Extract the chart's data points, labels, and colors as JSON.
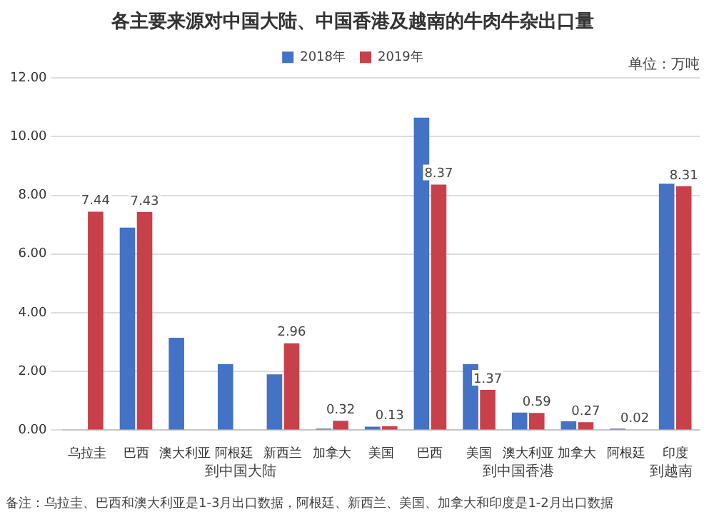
{
  "chart_data": {
    "type": "bar",
    "title": "各主要来源对中国大陆、中国香港及越南的牛肉牛杂出口量",
    "categories": [
      "乌拉圭",
      "巴西",
      "澳大利亚",
      "阿根廷",
      "新西兰",
      "加拿大",
      "美国",
      "巴西",
      "美国",
      "澳大利亚",
      "加拿大",
      "阿根廷",
      "印度"
    ],
    "series": [
      {
        "name": "2018年",
        "color": "#4472c4",
        "values": [
          null,
          6.9,
          3.15,
          2.25,
          1.9,
          0.05,
          0.12,
          10.65,
          2.25,
          0.6,
          0.3,
          0.05,
          8.4
        ]
      },
      {
        "name": "2019年",
        "color": "#c8414a",
        "values": [
          7.44,
          7.43,
          null,
          null,
          2.96,
          0.32,
          0.13,
          8.37,
          1.37,
          0.59,
          0.27,
          0.02,
          8.31
        ],
        "value_labels": [
          "7.44",
          "7.43",
          null,
          null,
          "2.96",
          "0.32",
          "0.13",
          "8.37",
          "1.37",
          "0.59",
          "0.27",
          "0.02",
          "8.31"
        ]
      }
    ],
    "ylim": [
      0,
      12
    ],
    "yticks": [
      {
        "value": 0,
        "label": "0.00"
      },
      {
        "value": 2,
        "label": "2.00"
      },
      {
        "value": 4,
        "label": "4.00"
      },
      {
        "value": 6,
        "label": "6.00"
      },
      {
        "value": 8,
        "label": "8.00"
      },
      {
        "value": 10,
        "label": "10.00"
      },
      {
        "value": 12,
        "label": "12.00"
      }
    ],
    "grid": "y",
    "legend": "top",
    "annotations": [
      "到中国大陆",
      "到中国香港",
      "到越南",
      "单位：万吨",
      "备注：乌拉圭、巴西和澳大利亚是1-3月出口数据，阿根廷、新西兰、美国、加拿大和印度是1-2月出口数据"
    ]
  }
}
